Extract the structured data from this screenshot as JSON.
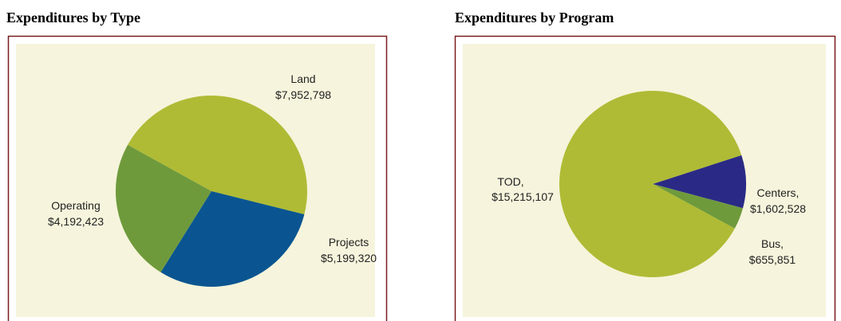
{
  "chart_data": [
    {
      "type": "pie",
      "title": "Expenditures by Type",
      "categories": [
        "Land",
        "Projects",
        "Operating"
      ],
      "values": [
        7952798,
        5199320,
        4192423
      ],
      "value_labels": [
        "$7,952,798",
        "$5,199,320",
        "$4,192,423"
      ],
      "colors": [
        "#afbb35",
        "#0a5591",
        "#6f9a3c"
      ]
    },
    {
      "type": "pie",
      "title": "Expenditures by Program",
      "categories": [
        "Centers,",
        "Bus,",
        "TOD,"
      ],
      "values": [
        1602528,
        655851,
        15215107
      ],
      "value_labels": [
        "$1,602,528",
        "$655,851",
        "$15,215,107"
      ],
      "colors": [
        "#2a2a86",
        "#6f9a3c",
        "#afbb35"
      ]
    }
  ]
}
